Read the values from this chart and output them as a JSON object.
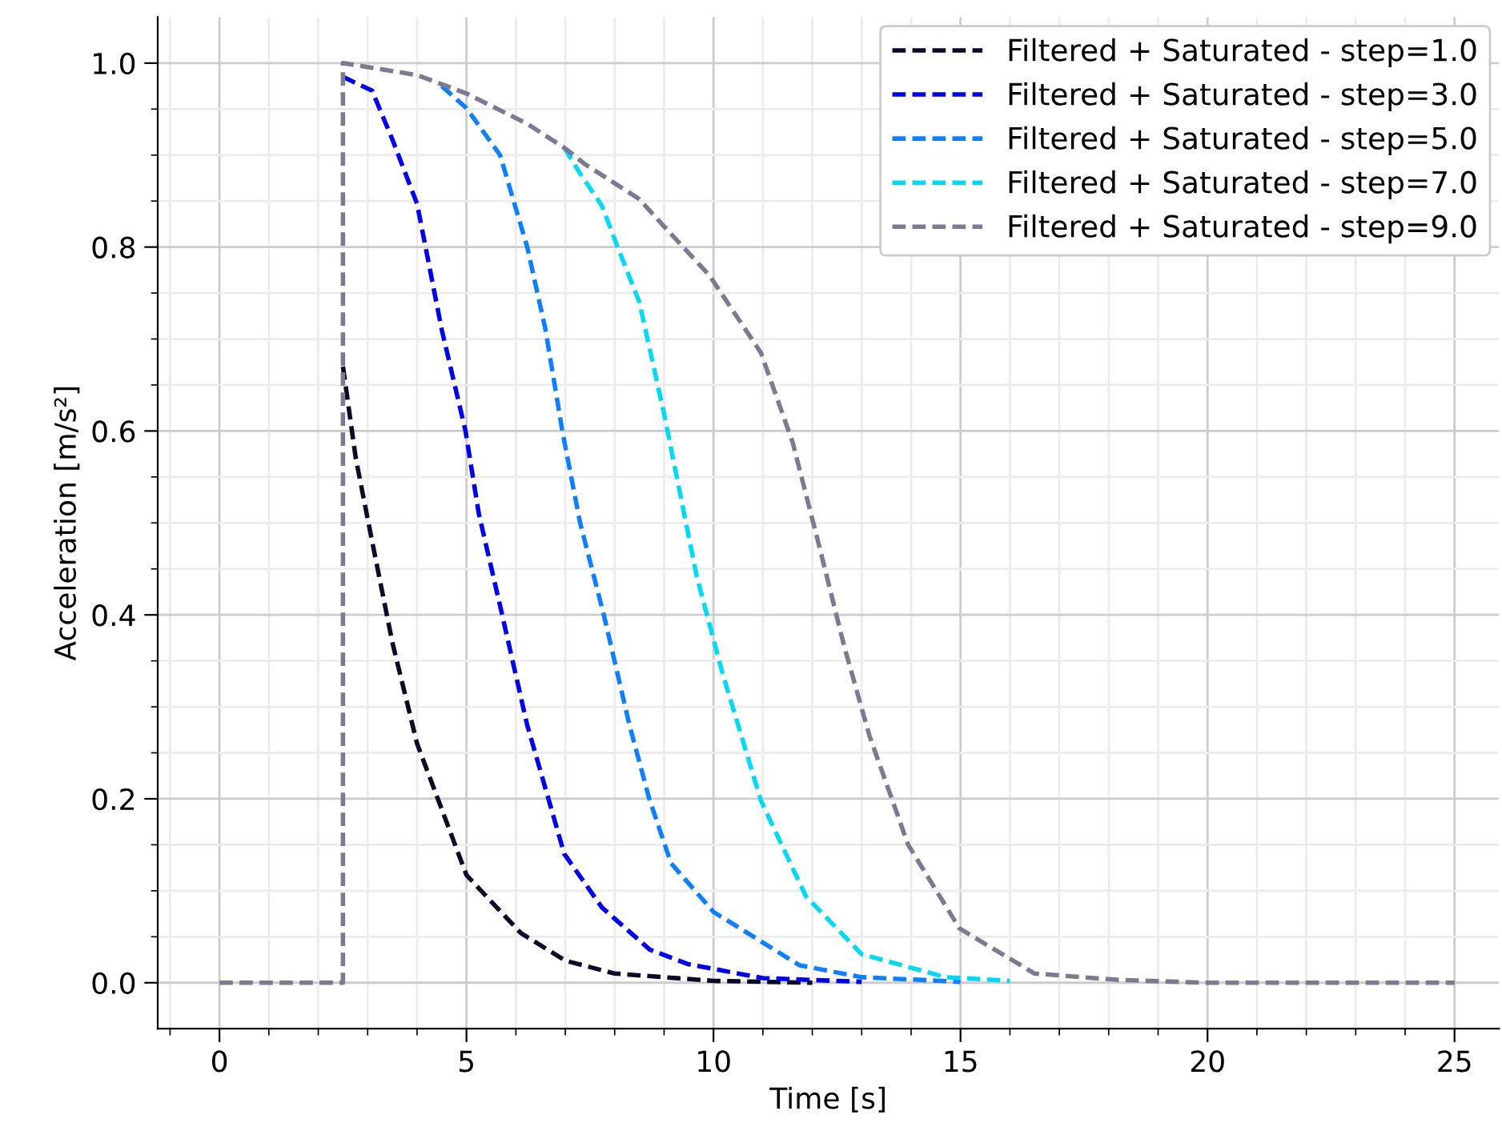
{
  "chart_data": {
    "type": "line",
    "xlabel": "Time [s]",
    "ylabel": "Acceleration [m/s²]",
    "xlim": [
      -1.25,
      25.9
    ],
    "ylim": [
      -0.05,
      1.05
    ],
    "xticks": [
      {
        "value": -1,
        "label": null
      },
      0,
      {
        "value": 1,
        "label": null
      },
      {
        "value": 2,
        "label": null
      },
      {
        "value": 3,
        "label": null
      },
      {
        "value": 4,
        "label": null
      },
      5,
      {
        "value": 6,
        "label": null
      },
      {
        "value": 7,
        "label": null
      },
      {
        "value": 8,
        "label": null
      },
      {
        "value": 9,
        "label": null
      },
      10,
      {
        "value": 11,
        "label": null
      },
      {
        "value": 12,
        "label": null
      },
      {
        "value": 13,
        "label": null
      },
      {
        "value": 14,
        "label": null
      },
      15,
      {
        "value": 16,
        "label": null
      },
      {
        "value": 17,
        "label": null
      },
      {
        "value": 18,
        "label": null
      },
      {
        "value": 19,
        "label": null
      },
      20,
      {
        "value": 21,
        "label": null
      },
      {
        "value": 22,
        "label": null
      },
      {
        "value": 23,
        "label": null
      },
      {
        "value": 24,
        "label": null
      },
      25
    ],
    "yticks": [
      {
        "value": 0,
        "label": "0.0"
      },
      {
        "value": 0.05,
        "label": null
      },
      {
        "value": 0.1,
        "label": null
      },
      {
        "value": 0.15,
        "label": null
      },
      0.2,
      {
        "value": 0.25,
        "label": null
      },
      {
        "value": 0.3,
        "label": null
      },
      {
        "value": 0.35,
        "label": null
      },
      0.4,
      {
        "value": 0.45,
        "label": null
      },
      {
        "value": 0.5,
        "label": null
      },
      {
        "value": 0.55,
        "label": null
      },
      0.6,
      {
        "value": 0.65,
        "label": null
      },
      {
        "value": 0.7,
        "label": null
      },
      {
        "value": 0.75,
        "label": null
      },
      0.8,
      {
        "value": 0.85,
        "label": null
      },
      {
        "value": 0.9,
        "label": null
      },
      {
        "value": 0.95,
        "label": null
      },
      {
        "value": 1,
        "label": "1.0"
      }
    ],
    "grid": true,
    "legend": "top right",
    "line_style": "dashed",
    "marker": "none",
    "series": [
      {
        "name": "Filtered + Saturated - step=1.0",
        "color": "#0a0a28",
        "x": [
          2.5,
          2.76,
          3.09,
          3.5,
          4,
          5,
          6.1,
          7,
          8,
          10,
          12
        ],
        "values": [
          0.67,
          0.57,
          0.48,
          0.37,
          0.26,
          0.117,
          0.054,
          0.024,
          0.01,
          0.002,
          0
        ]
      },
      {
        "name": "Filtered + Saturated - step=3.0",
        "color": "#0000e6",
        "x": [
          2.5,
          3.09,
          3.5,
          4,
          4.5,
          4.98,
          5.25,
          5.68,
          6.23,
          6.98,
          7.74,
          8.71,
          9.5,
          11,
          13
        ],
        "values": [
          0.985,
          0.97,
          0.917,
          0.847,
          0.71,
          0.6,
          0.51,
          0.41,
          0.28,
          0.14,
          0.082,
          0.036,
          0.02,
          0.005,
          0.001
        ]
      },
      {
        "name": "Filtered + Saturated - step=5.0",
        "color": "#0f7fff",
        "x": [
          4.5,
          5,
          5.68,
          6.23,
          6.6,
          6.94,
          7.3,
          7.78,
          8.3,
          8.7,
          9.14,
          10,
          11.74,
          13,
          15
        ],
        "values": [
          0.975,
          0.951,
          0.9,
          0.8,
          0.71,
          0.6,
          0.5,
          0.4,
          0.28,
          0.2,
          0.13,
          0.077,
          0.019,
          0.006,
          0.001
        ]
      },
      {
        "name": "Filtered + Saturated - step=7.0",
        "color": "#00d8f5",
        "x": [
          6.98,
          7.3,
          7.74,
          8.06,
          8.5,
          9.01,
          9.66,
          10.18,
          10.96,
          11.87,
          13,
          14.7,
          16
        ],
        "values": [
          0.908,
          0.88,
          0.845,
          0.8,
          0.74,
          0.616,
          0.442,
          0.337,
          0.198,
          0.094,
          0.031,
          0.006,
          0.002
        ]
      },
      {
        "name": "Filtered + Saturated - step=9.0",
        "color": "#7a7a92",
        "x": [
          0,
          2.5,
          2.5,
          4,
          5,
          6.23,
          6.98,
          7.4,
          8.5,
          9.04,
          9.92,
          10.96,
          11.6,
          12.13,
          12.65,
          13.16,
          13.94,
          14.98,
          16.5,
          18.2,
          20,
          25
        ],
        "values": [
          0,
          0,
          1.0,
          0.987,
          0.967,
          0.934,
          0.908,
          0.89,
          0.852,
          0.82,
          0.769,
          0.685,
          0.588,
          0.477,
          0.365,
          0.268,
          0.15,
          0.059,
          0.01,
          0.003,
          0,
          0
        ]
      }
    ]
  }
}
